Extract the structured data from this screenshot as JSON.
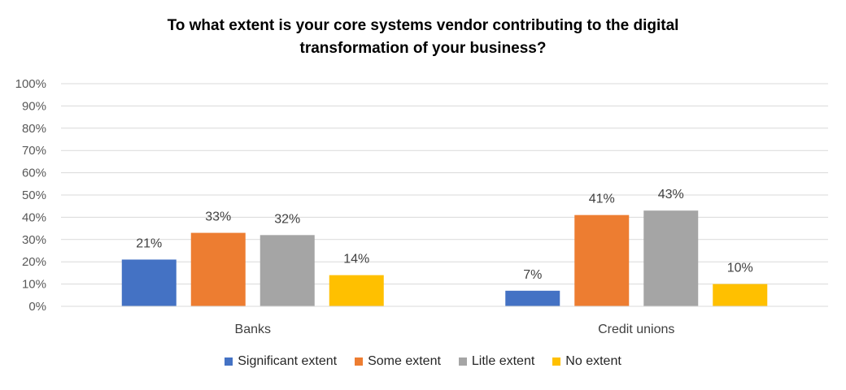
{
  "chart_data": {
    "type": "bar",
    "title_lines": [
      "To what extent is your core systems vendor contributing to the digital",
      "transformation of your business?"
    ],
    "categories": [
      "Banks",
      "Credit unions"
    ],
    "series": [
      {
        "name": "Significant extent",
        "values": [
          21,
          7
        ],
        "labels": [
          "21%",
          "7%"
        ],
        "color": "#4472C4"
      },
      {
        "name": "Some extent",
        "values": [
          33,
          41
        ],
        "labels": [
          "33%",
          "41%"
        ],
        "color": "#ED7D31"
      },
      {
        "name": "Litle extent",
        "values": [
          32,
          43
        ],
        "labels": [
          "32%",
          "43%"
        ],
        "color": "#A5A5A5"
      },
      {
        "name": "No extent",
        "values": [
          14,
          10
        ],
        "labels": [
          "14%",
          "10%"
        ],
        "color": "#FFC000"
      }
    ],
    "ylim": [
      0,
      100
    ],
    "yticks": [
      "0%",
      "10%",
      "20%",
      "30%",
      "40%",
      "50%",
      "60%",
      "70%",
      "80%",
      "90%",
      "100%"
    ],
    "grid": true,
    "legend_position": "bottom"
  }
}
